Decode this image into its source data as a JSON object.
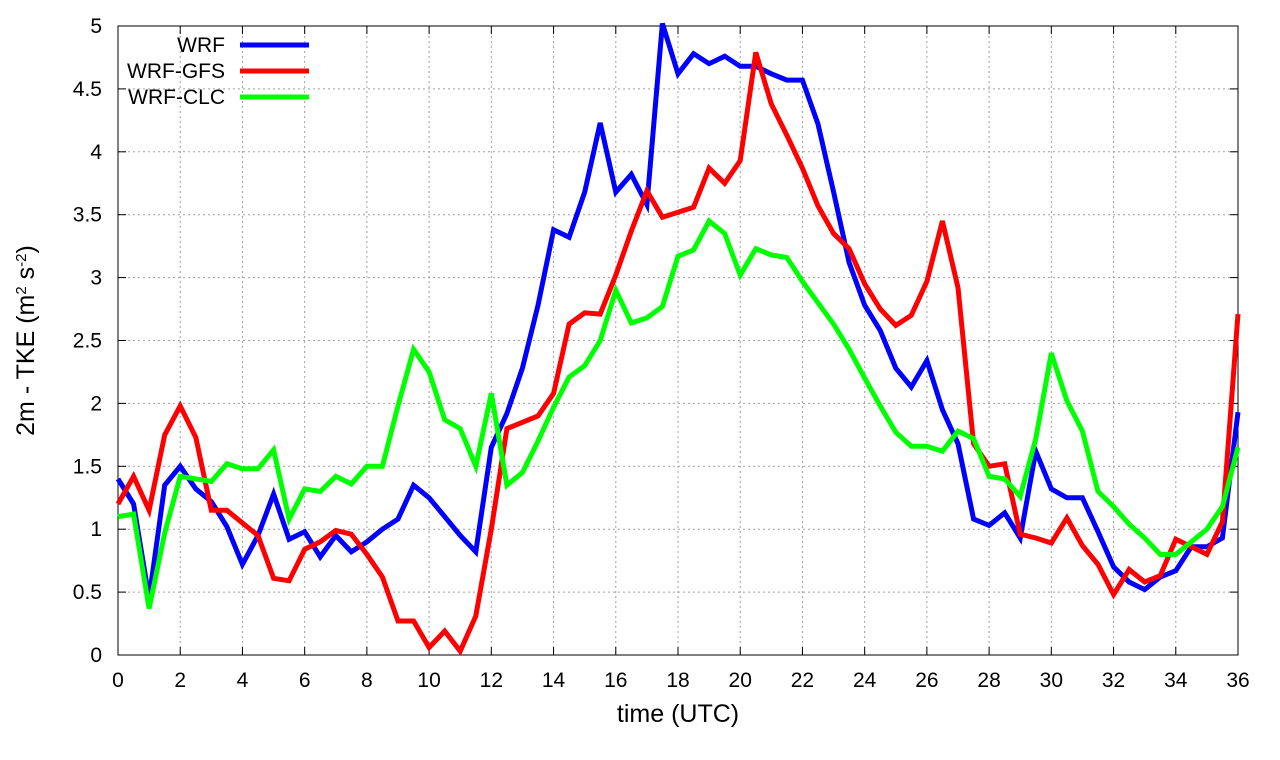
{
  "chart_data": {
    "type": "line",
    "title": "",
    "xlabel": "time (UTC)",
    "ylabel_main": "2m - TKE (m",
    "ylabel_sup1": "2",
    "ylabel_mid": " s",
    "ylabel_sup2": "-2",
    "ylabel_end": ")",
    "xlim": [
      0,
      36
    ],
    "ylim": [
      0,
      5
    ],
    "xticks": [
      0,
      2,
      4,
      6,
      8,
      10,
      12,
      14,
      16,
      18,
      20,
      22,
      24,
      26,
      28,
      30,
      32,
      34,
      36
    ],
    "xtick_labels": [
      "0",
      "2",
      "4",
      "6",
      "8",
      "10",
      "12",
      "14",
      "16",
      "18",
      "20",
      "22",
      "24",
      "26",
      "28",
      "30",
      "32",
      "34",
      "36"
    ],
    "yticks": [
      0,
      0.5,
      1,
      1.5,
      2,
      2.5,
      3,
      3.5,
      4,
      4.5,
      5
    ],
    "ytick_labels": [
      "0",
      "0.5",
      "1",
      "1.5",
      "2",
      "2.5",
      "3",
      "3.5",
      "4",
      "4.5",
      "5"
    ],
    "grid": true,
    "legend_position": "top-left",
    "x": [
      0,
      0.5,
      1,
      1.5,
      2,
      2.5,
      3,
      3.5,
      4,
      4.5,
      5,
      5.5,
      6,
      6.5,
      7,
      7.5,
      8,
      8.5,
      9,
      9.5,
      10,
      10.5,
      11,
      11.5,
      12,
      12.5,
      13,
      13.5,
      14,
      14.5,
      15,
      15.5,
      16,
      16.5,
      17,
      17.5,
      18,
      18.5,
      19,
      19.5,
      20,
      20.5,
      21,
      21.5,
      22,
      22.5,
      23,
      23.5,
      24,
      24.5,
      25,
      25.5,
      26,
      26.5,
      27,
      27.5,
      28,
      28.5,
      29,
      29.5,
      30,
      30.5,
      31,
      31.5,
      32,
      32.5,
      33,
      33.5,
      34,
      34.5,
      35,
      35.5,
      36
    ],
    "series": [
      {
        "name": "WRF",
        "color": "#0000ff",
        "values": [
          1.4,
          1.2,
          0.45,
          1.35,
          1.5,
          1.32,
          1.22,
          1.02,
          0.72,
          0.95,
          1.28,
          0.92,
          0.98,
          0.78,
          0.95,
          0.82,
          0.9,
          1.0,
          1.08,
          1.35,
          1.25,
          1.1,
          0.95,
          0.82,
          1.65,
          1.92,
          2.28,
          2.78,
          3.38,
          3.32,
          3.68,
          4.23,
          3.68,
          3.82,
          3.58,
          5.02,
          4.62,
          4.78,
          4.7,
          4.76,
          4.68,
          4.68,
          4.62,
          4.57,
          4.57,
          4.22,
          3.68,
          3.12,
          2.78,
          2.58,
          2.28,
          2.13,
          2.34,
          1.95,
          1.68,
          1.08,
          1.03,
          1.13,
          0.93,
          1.62,
          1.32,
          1.25,
          1.25,
          0.98,
          0.7,
          0.58,
          0.52,
          0.62,
          0.67,
          0.86,
          0.86,
          0.93,
          1.93
        ]
      },
      {
        "name": "WRF-GFS",
        "color": "#ff0000",
        "values": [
          1.2,
          1.42,
          1.15,
          1.75,
          1.98,
          1.73,
          1.15,
          1.15,
          1.05,
          0.95,
          0.61,
          0.59,
          0.84,
          0.9,
          0.99,
          0.96,
          0.8,
          0.62,
          0.27,
          0.27,
          0.06,
          0.19,
          0.03,
          0.31,
          1.0,
          1.8,
          1.85,
          1.9,
          2.08,
          2.63,
          2.72,
          2.71,
          3.02,
          3.37,
          3.69,
          3.48,
          3.52,
          3.56,
          3.87,
          3.75,
          3.93,
          4.79,
          4.38,
          4.13,
          3.87,
          3.57,
          3.35,
          3.23,
          2.95,
          2.75,
          2.62,
          2.7,
          2.97,
          3.45,
          2.92,
          1.68,
          1.5,
          1.52,
          0.96,
          0.93,
          0.89,
          1.09,
          0.87,
          0.72,
          0.48,
          0.68,
          0.58,
          0.63,
          0.92,
          0.86,
          0.8,
          1.06,
          2.71
        ]
      },
      {
        "name": "WRF-CLC",
        "color": "#00ff00",
        "values": [
          1.1,
          1.12,
          0.37,
          0.97,
          1.42,
          1.4,
          1.38,
          1.52,
          1.48,
          1.48,
          1.63,
          1.08,
          1.32,
          1.3,
          1.42,
          1.36,
          1.5,
          1.5,
          1.98,
          2.43,
          2.25,
          1.87,
          1.8,
          1.5,
          2.08,
          1.35,
          1.45,
          1.7,
          1.97,
          2.21,
          2.3,
          2.5,
          2.9,
          2.64,
          2.68,
          2.77,
          3.17,
          3.22,
          3.45,
          3.35,
          3.02,
          3.23,
          3.18,
          3.16,
          2.97,
          2.8,
          2.63,
          2.43,
          2.2,
          1.98,
          1.77,
          1.66,
          1.66,
          1.62,
          1.78,
          1.72,
          1.42,
          1.4,
          1.26,
          1.72,
          2.4,
          2.02,
          1.78,
          1.3,
          1.18,
          1.04,
          0.93,
          0.8,
          0.8,
          0.9,
          1.0,
          1.18,
          1.65
        ]
      }
    ]
  }
}
